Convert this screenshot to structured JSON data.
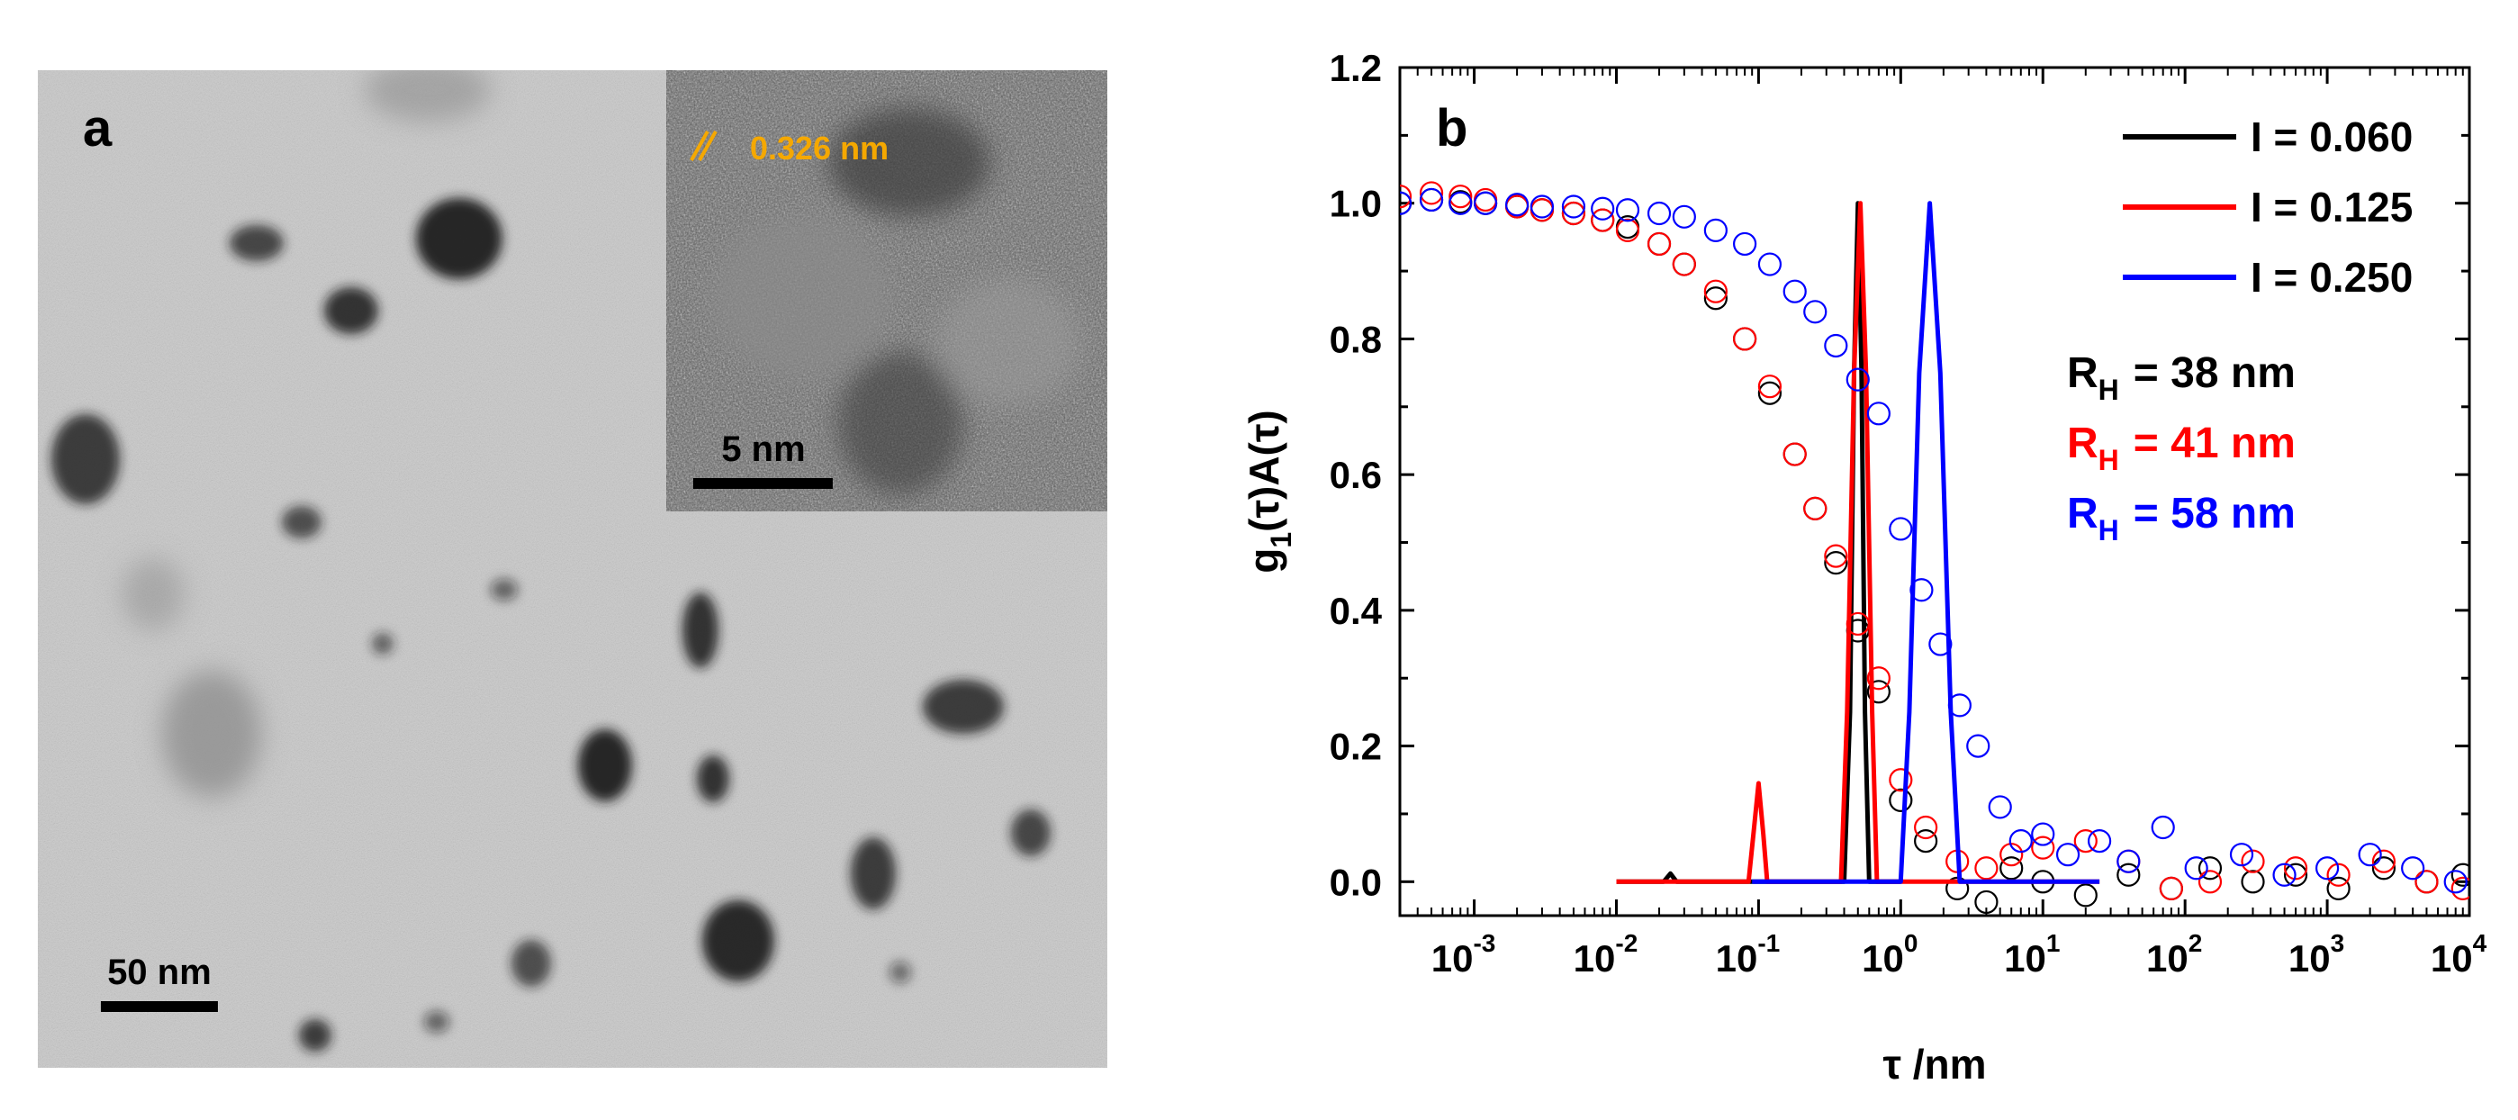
{
  "panel_a": {
    "label": "a",
    "scalebar_label": "50 nm",
    "inset": {
      "scalebar_label": "5 nm",
      "lattice_label": "0.326 nm"
    }
  },
  "colors": {
    "I_0060": "#000000",
    "I_0125": "#ff0000",
    "I_0250": "#0000ff",
    "lattice_label": "#f5a800"
  },
  "chart_data": {
    "type": "line",
    "panel_label": "b",
    "xlabel": "τ /nm",
    "ylabel": "g1(τ)A(τ)",
    "x_scale": "log",
    "xlim": [
      0.0003,
      10000
    ],
    "ylim": [
      -0.05,
      1.2
    ],
    "x_ticks": [
      0.001,
      0.01,
      0.1,
      1,
      10,
      100,
      1000,
      10000
    ],
    "x_tick_exponents": [
      "-3",
      "-2",
      "-1",
      "0",
      "1",
      "2",
      "3",
      "4"
    ],
    "y_ticks": [
      0.0,
      0.2,
      0.4,
      0.6,
      0.8,
      1.0,
      1.2
    ],
    "y_tick_labels": [
      "0.0",
      "0.2",
      "0.4",
      "0.6",
      "0.8",
      "1.0",
      "1.2"
    ],
    "legend_position": "top-right",
    "series": [
      {
        "name": "I = 0.060",
        "color": "#000000",
        "rh_label": "R",
        "rh_sub": "H",
        "rh_value": "= 38 nm",
        "distribution": [
          [
            0.01,
            0.0
          ],
          [
            0.0215,
            0.0
          ],
          [
            0.024,
            0.012
          ],
          [
            0.0265,
            0.0
          ],
          [
            0.4,
            0.0
          ],
          [
            0.44,
            0.25
          ],
          [
            0.47,
            0.75
          ],
          [
            0.5,
            1.0
          ],
          [
            0.53,
            0.75
          ],
          [
            0.56,
            0.25
          ],
          [
            0.6,
            0.0
          ],
          [
            1.0,
            0.0
          ]
        ],
        "correlation": [
          [
            0.0003,
            1.0
          ],
          [
            0.0005,
            1.005
          ],
          [
            0.0008,
            1.002
          ],
          [
            0.0012,
            1.0
          ],
          [
            0.002,
            0.995
          ],
          [
            0.003,
            0.99
          ],
          [
            0.005,
            0.985
          ],
          [
            0.008,
            0.975
          ],
          [
            0.012,
            0.965
          ],
          [
            0.02,
            0.94
          ],
          [
            0.03,
            0.91
          ],
          [
            0.05,
            0.86
          ],
          [
            0.08,
            0.8
          ],
          [
            0.12,
            0.72
          ],
          [
            0.18,
            0.63
          ],
          [
            0.25,
            0.55
          ],
          [
            0.35,
            0.47
          ],
          [
            0.5,
            0.37
          ],
          [
            0.7,
            0.28
          ],
          [
            1.0,
            0.12
          ],
          [
            1.5,
            0.06
          ],
          [
            2.5,
            -0.01
          ],
          [
            4,
            -0.03
          ],
          [
            6,
            0.02
          ],
          [
            10,
            0.0
          ],
          [
            20,
            -0.02
          ],
          [
            40,
            0.01
          ],
          [
            80,
            -0.01
          ],
          [
            150,
            0.02
          ],
          [
            300,
            0.0
          ],
          [
            600,
            0.01
          ],
          [
            1200,
            -0.01
          ],
          [
            2500,
            0.02
          ],
          [
            5000,
            0.0
          ],
          [
            9000,
            0.01
          ]
        ]
      },
      {
        "name": "I = 0.125",
        "color": "#ff0000",
        "rh_label": "R",
        "rh_sub": "H",
        "rh_value": "= 41 nm",
        "distribution": [
          [
            0.01,
            0.0
          ],
          [
            0.085,
            0.0
          ],
          [
            0.092,
            0.07
          ],
          [
            0.1,
            0.145
          ],
          [
            0.108,
            0.07
          ],
          [
            0.115,
            0.0
          ],
          [
            0.38,
            0.0
          ],
          [
            0.42,
            0.25
          ],
          [
            0.47,
            0.75
          ],
          [
            0.52,
            1.0
          ],
          [
            0.57,
            0.75
          ],
          [
            0.63,
            0.25
          ],
          [
            0.68,
            0.0
          ],
          [
            25,
            0.0
          ]
        ],
        "correlation": [
          [
            0.0003,
            1.01
          ],
          [
            0.0005,
            1.015
          ],
          [
            0.0008,
            1.01
          ],
          [
            0.0012,
            1.005
          ],
          [
            0.002,
            0.995
          ],
          [
            0.003,
            0.99
          ],
          [
            0.005,
            0.985
          ],
          [
            0.008,
            0.975
          ],
          [
            0.012,
            0.96
          ],
          [
            0.02,
            0.94
          ],
          [
            0.03,
            0.91
          ],
          [
            0.05,
            0.87
          ],
          [
            0.08,
            0.8
          ],
          [
            0.12,
            0.73
          ],
          [
            0.18,
            0.63
          ],
          [
            0.25,
            0.55
          ],
          [
            0.35,
            0.48
          ],
          [
            0.5,
            0.38
          ],
          [
            0.7,
            0.3
          ],
          [
            1.0,
            0.15
          ],
          [
            1.5,
            0.08
          ],
          [
            2.5,
            0.03
          ],
          [
            4,
            0.02
          ],
          [
            6,
            0.04
          ],
          [
            10,
            0.05
          ],
          [
            20,
            0.06
          ],
          [
            40,
            0.03
          ],
          [
            80,
            -0.01
          ],
          [
            150,
            0.0
          ],
          [
            300,
            0.03
          ],
          [
            600,
            0.02
          ],
          [
            1200,
            0.01
          ],
          [
            2500,
            0.03
          ],
          [
            5000,
            0.0
          ],
          [
            9000,
            -0.01
          ]
        ]
      },
      {
        "name": "I = 0.250",
        "color": "#0000ff",
        "rh_label": "R",
        "rh_sub": "H",
        "rh_value": "= 58 nm",
        "distribution": [
          [
            0.09,
            0.0
          ],
          [
            1.0,
            0.0
          ],
          [
            1.15,
            0.25
          ],
          [
            1.35,
            0.75
          ],
          [
            1.6,
            1.0
          ],
          [
            1.9,
            0.75
          ],
          [
            2.25,
            0.25
          ],
          [
            2.6,
            0.0
          ],
          [
            25,
            0.0
          ]
        ],
        "correlation": [
          [
            0.0003,
            1.0
          ],
          [
            0.0005,
            1.005
          ],
          [
            0.0008,
            1.0
          ],
          [
            0.0012,
            1.0
          ],
          [
            0.002,
            0.998
          ],
          [
            0.003,
            0.995
          ],
          [
            0.005,
            0.995
          ],
          [
            0.008,
            0.992
          ],
          [
            0.012,
            0.99
          ],
          [
            0.02,
            0.985
          ],
          [
            0.03,
            0.98
          ],
          [
            0.05,
            0.96
          ],
          [
            0.08,
            0.94
          ],
          [
            0.12,
            0.91
          ],
          [
            0.18,
            0.87
          ],
          [
            0.25,
            0.84
          ],
          [
            0.35,
            0.79
          ],
          [
            0.5,
            0.74
          ],
          [
            0.7,
            0.69
          ],
          [
            1.0,
            0.52
          ],
          [
            1.4,
            0.43
          ],
          [
            1.9,
            0.35
          ],
          [
            2.6,
            0.26
          ],
          [
            3.5,
            0.2
          ],
          [
            5,
            0.11
          ],
          [
            7,
            0.06
          ],
          [
            10,
            0.07
          ],
          [
            15,
            0.04
          ],
          [
            25,
            0.06
          ],
          [
            40,
            0.03
          ],
          [
            70,
            0.08
          ],
          [
            120,
            0.02
          ],
          [
            250,
            0.04
          ],
          [
            500,
            0.01
          ],
          [
            1000,
            0.02
          ],
          [
            2000,
            0.04
          ],
          [
            4000,
            0.02
          ],
          [
            8000,
            0.0
          ]
        ]
      }
    ]
  }
}
